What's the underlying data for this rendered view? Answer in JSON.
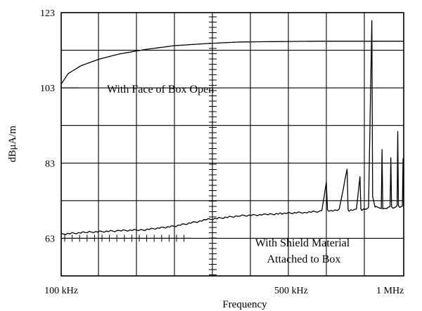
{
  "chart_data": {
    "type": "line",
    "title": "",
    "xlabel": "Frequency",
    "ylabel": "dBμA/m",
    "x_scale": "log",
    "xlim": [
      100000,
      1100000
    ],
    "ylim": [
      53,
      123
    ],
    "grid": true,
    "y_tick_labels": [
      {
        "value": 123,
        "label": "123"
      },
      {
        "value": 103,
        "label": "103"
      },
      {
        "value": 83,
        "label": "83"
      },
      {
        "value": 63,
        "label": "63"
      }
    ],
    "x_tick_labels": [
      {
        "value": 100000,
        "label": "100 kHz"
      },
      {
        "value": 500000,
        "label": "500 kHz"
      },
      {
        "value": 1000000,
        "label": "1 MHz"
      }
    ],
    "annotations": [
      {
        "text": "With Face of Box Open",
        "lines": [
          "With Face of Box Open"
        ]
      },
      {
        "text": "With Shield Material Attached to Box",
        "lines": [
          "With Shield Material",
          "Attached to Box"
        ]
      }
    ],
    "series": [
      {
        "x": [
          100000,
          105000,
          115000,
          130000,
          150000,
          180000,
          220000,
          280000,
          350000,
          450000,
          600000,
          800000,
          1000000,
          1100000
        ],
        "values": [
          104,
          106.8,
          108.9,
          110.6,
          112.0,
          113.2,
          114.2,
          114.8,
          115.2,
          115.3,
          115.4,
          115.4,
          115.4,
          115.4
        ]
      },
      {
        "x": [
          100000,
          120000,
          150000,
          180000,
          220000,
          280000,
          350000,
          420000,
          470000,
          550000,
          620000,
          640000,
          645000,
          650000,
          660000,
          700000,
          740000,
          745000,
          750000,
          760000,
          790000,
          810000,
          815000,
          820000,
          830000,
          860000,
          880000,
          885000,
          900000,
          905000,
          920000,
          940000,
          945000,
          950000,
          960000,
          1000000,
          1005000,
          1010000,
          1020000,
          1040000,
          1050000,
          1055000,
          1060000,
          1070000,
          1090000,
          1095000,
          1100000
        ],
        "values": [
          64.1,
          64.6,
          65.0,
          65.3,
          66.2,
          68.0,
          69.0,
          69.3,
          69.6,
          69.9,
          70.2,
          78.0,
          70.5,
          70.4,
          70.4,
          70.5,
          81.5,
          70.5,
          70.4,
          70.6,
          70.6,
          79.5,
          70.7,
          70.6,
          70.8,
          71.0,
          121.0,
          74.0,
          71.5,
          71.5,
          71.0,
          71.0,
          86.5,
          71.0,
          71.0,
          71.2,
          84.5,
          71.3,
          71.2,
          71.3,
          71.5,
          91.5,
          71.6,
          71.4,
          71.6,
          84.0,
          71.5
        ]
      }
    ]
  }
}
